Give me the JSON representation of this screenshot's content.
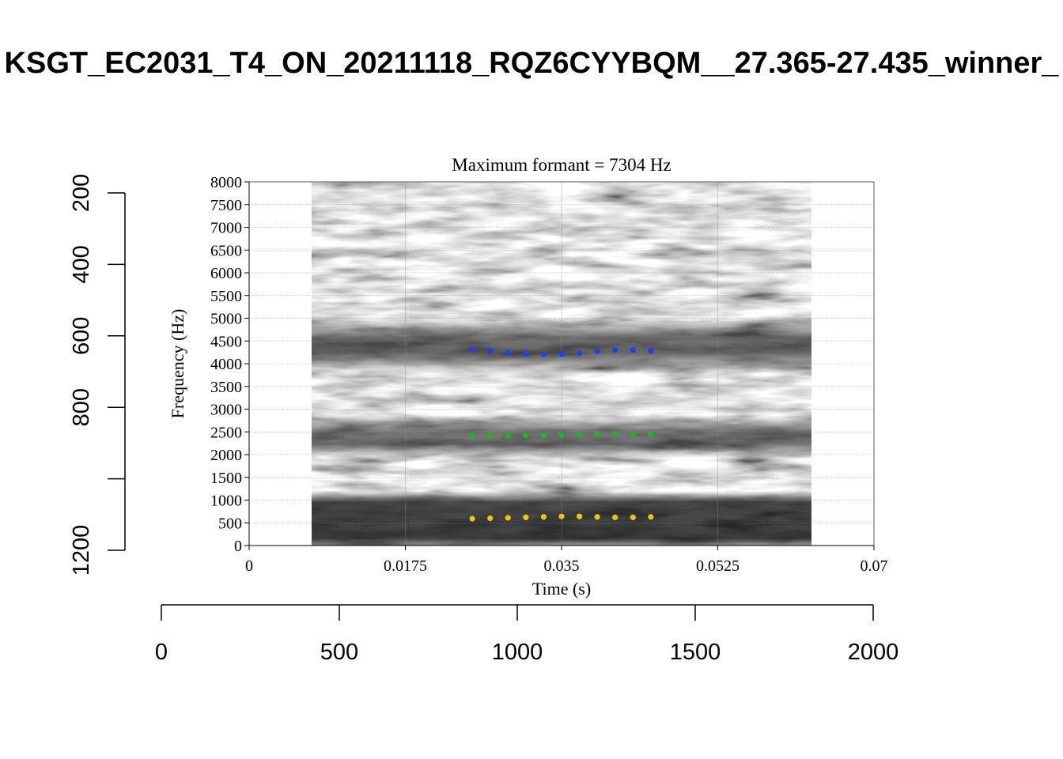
{
  "page": {
    "title": "KSGT_EC2031_T4_ON_20211118_RQZ6CYYBQM__27.365-27.435_winner_"
  },
  "outer_axes": {
    "left": {
      "ticks": [
        200,
        400,
        600,
        800,
        1000,
        1200
      ],
      "tick_labels": [
        "200",
        "400",
        "600",
        "800",
        "",
        "1200"
      ],
      "range": [
        1232,
        168
      ]
    },
    "bottom": {
      "ticks": [
        0,
        500,
        1000,
        1500,
        2000
      ],
      "tick_labels": [
        "0",
        "500",
        "1000",
        "1500",
        "2000"
      ],
      "range": [
        0,
        2000
      ]
    }
  },
  "chart_data": {
    "type": "scatter",
    "title": "Maximum formant = 7304 Hz",
    "xlabel": "Time (s)",
    "ylabel": "Frequency (Hz)",
    "xlim": [
      0,
      0.07
    ],
    "ylim": [
      0,
      8000
    ],
    "x_ticks": [
      0,
      0.0175,
      0.035,
      0.0525,
      0.07
    ],
    "x_tick_labels": [
      "0",
      "0.0175",
      "0.035",
      "0.0525",
      "0.07"
    ],
    "y_ticks": [
      0,
      500,
      1000,
      1500,
      2000,
      2500,
      3000,
      3500,
      4000,
      4500,
      5000,
      5500,
      6000,
      6500,
      7000,
      7500,
      8000
    ],
    "y_tick_labels": [
      "0",
      "500",
      "1000",
      "1500",
      "2000",
      "2500",
      "3000",
      "3500",
      "4000",
      "4500",
      "5000",
      "5500",
      "6000",
      "6500",
      "7000",
      "7500",
      "8000"
    ],
    "grid": true,
    "background": "grayscale spectrogram",
    "spectrogram_time_range": [
      0.007,
      0.063
    ],
    "series": [
      {
        "color": "#1f3fff",
        "x": [
          0.025,
          0.027,
          0.029,
          0.031,
          0.033,
          0.035,
          0.037,
          0.039,
          0.041,
          0.043,
          0.045
        ],
        "values": [
          4310,
          4280,
          4240,
          4220,
          4210,
          4210,
          4230,
          4270,
          4300,
          4300,
          4280
        ]
      },
      {
        "color": "#22b322",
        "x": [
          0.025,
          0.027,
          0.029,
          0.031,
          0.033,
          0.035,
          0.037,
          0.039,
          0.041,
          0.043,
          0.045
        ],
        "values": [
          2410,
          2410,
          2410,
          2420,
          2420,
          2430,
          2450,
          2450,
          2460,
          2450,
          2440
        ]
      },
      {
        "color": "#e6c619",
        "x": [
          0.025,
          0.027,
          0.029,
          0.031,
          0.033,
          0.035,
          0.037,
          0.039,
          0.041,
          0.043,
          0.045
        ],
        "values": [
          590,
          600,
          610,
          620,
          630,
          640,
          640,
          630,
          620,
          620,
          630
        ]
      }
    ]
  }
}
